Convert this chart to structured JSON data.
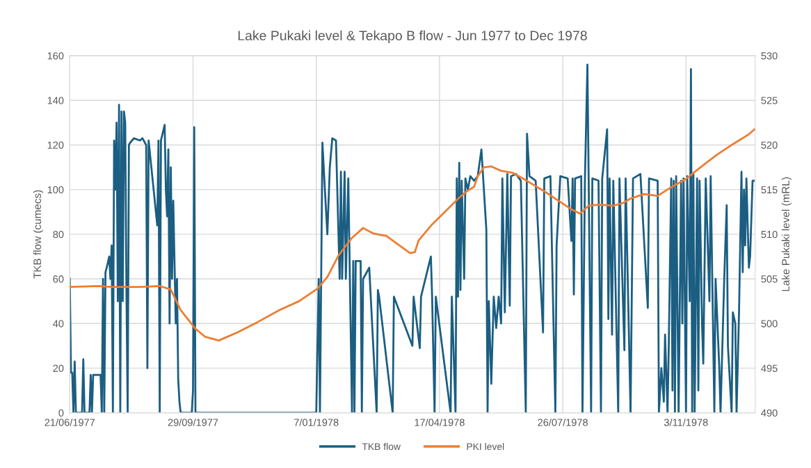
{
  "chart_data": {
    "type": "line",
    "title": "Lake Pukaki level & Tekapo B flow - Jun 1977 to Dec 1978",
    "ylabel": "TKB flow (cumecs)",
    "y2label": "Lake Pukaki level (mRL)",
    "xlim": [
      "1977-06-21",
      "1978-12-29"
    ],
    "xticks": [
      {
        "value": "1977-06-21",
        "label": "21/06/1977"
      },
      {
        "value": "1977-09-29",
        "label": "29/09/1977"
      },
      {
        "value": "1978-01-07",
        "label": "7/01/1978"
      },
      {
        "value": "1978-04-17",
        "label": "17/04/1978"
      },
      {
        "value": "1978-07-26",
        "label": "26/07/1978"
      },
      {
        "value": "1978-11-03",
        "label": "3/11/1978"
      }
    ],
    "ylim": [
      0,
      160
    ],
    "yticks": [
      0,
      20,
      40,
      60,
      80,
      100,
      120,
      140,
      160
    ],
    "y2lim": [
      490,
      530
    ],
    "y2ticks": [
      490,
      495,
      500,
      505,
      510,
      515,
      520,
      525,
      530
    ],
    "grid": true,
    "legend": "bottom",
    "marker": "none",
    "line_style": "solid",
    "series": [
      {
        "name": "TKB flow",
        "color": "#1b5e82",
        "x": [
          "1977-06-21",
          "1977-06-22",
          "1977-06-23",
          "1977-06-24",
          "1977-06-25",
          "1977-06-26",
          "1977-07-01",
          "1977-07-02",
          "1977-07-03",
          "1977-07-07",
          "1977-07-08",
          "1977-07-09",
          "1977-07-10",
          "1977-07-16",
          "1977-07-17",
          "1977-07-18",
          "1977-07-19",
          "1977-07-20",
          "1977-07-21",
          "1977-07-23",
          "1977-07-24",
          "1977-07-25",
          "1977-07-26",
          "1977-07-27",
          "1977-07-28",
          "1977-07-29",
          "1977-07-30",
          "1977-07-31",
          "1977-08-01",
          "1977-08-02",
          "1977-08-03",
          "1977-08-04",
          "1977-08-05",
          "1977-08-06",
          "1977-08-07",
          "1977-08-08",
          "1977-08-09",
          "1977-08-12",
          "1977-08-17",
          "1977-08-19",
          "1977-08-22",
          "1977-08-23",
          "1977-08-24",
          "1977-08-31",
          "1977-09-01",
          "1977-09-02",
          "1977-09-03",
          "1977-09-06",
          "1977-09-07",
          "1977-09-08",
          "1977-09-09",
          "1977-09-10",
          "1977-09-11",
          "1977-09-12",
          "1977-09-13",
          "1977-09-15",
          "1977-09-16",
          "1977-09-17",
          "1977-09-18",
          "1977-09-19",
          "1977-09-28",
          "1977-09-29",
          "1977-09-30",
          "1977-10-01",
          "1978-01-07",
          "1978-01-09",
          "1978-01-10",
          "1978-01-12",
          "1978-01-14",
          "1978-01-16",
          "1978-01-18",
          "1978-01-20",
          "1978-01-23",
          "1978-01-26",
          "1978-01-27",
          "1978-01-28",
          "1978-01-30",
          "1978-01-31",
          "1978-02-02",
          "1978-02-05",
          "1978-02-06",
          "1978-02-07",
          "1978-02-08",
          "1978-02-12",
          "1978-02-13",
          "1978-02-14",
          "1978-02-19",
          "1978-02-25",
          "1978-02-26",
          "1978-02-27",
          "1978-03-10",
          "1978-03-11",
          "1978-03-26",
          "1978-03-27",
          "1978-04-01",
          "1978-04-02",
          "1978-04-10",
          "1978-04-11",
          "1978-04-13",
          "1978-04-14",
          "1978-04-26",
          "1978-04-27",
          "1978-04-30",
          "1978-05-01",
          "1978-05-02",
          "1978-05-03",
          "1978-05-04",
          "1978-05-05",
          "1978-05-07",
          "1978-05-08",
          "1978-05-10",
          "1978-05-12",
          "1978-05-15",
          "1978-05-18",
          "1978-05-21",
          "1978-05-23",
          "1978-05-25",
          "1978-05-26",
          "1978-05-27",
          "1978-05-29",
          "1978-05-31",
          "1978-06-02",
          "1978-06-04",
          "1978-06-06",
          "1978-06-07",
          "1978-06-09",
          "1978-06-11",
          "1978-06-13",
          "1978-06-14",
          "1978-06-18",
          "1978-06-22",
          "1978-06-26",
          "1978-06-27",
          "1978-06-29",
          "1978-07-04",
          "1978-07-10",
          "1978-07-11",
          "1978-07-16",
          "1978-07-20",
          "1978-07-21",
          "1978-07-24",
          "1978-07-30",
          "1978-08-02",
          "1978-08-03",
          "1978-08-04",
          "1978-08-05",
          "1978-08-10",
          "1978-08-11",
          "1978-08-13",
          "1978-08-15",
          "1978-08-16",
          "1978-08-18",
          "1978-08-19",
          "1978-08-24",
          "1978-08-26",
          "1978-08-27",
          "1978-08-31",
          "1978-09-01",
          "1978-09-02",
          "1978-09-04",
          "1978-09-05",
          "1978-09-09",
          "1978-09-10",
          "1978-09-14",
          "1978-09-15",
          "1978-09-19",
          "1978-09-21",
          "1978-09-27",
          "1978-10-03",
          "1978-10-04",
          "1978-10-11",
          "1978-10-12",
          "1978-10-14",
          "1978-10-16",
          "1978-10-17",
          "1978-10-19",
          "1978-10-20",
          "1978-10-22",
          "1978-10-23",
          "1978-10-24",
          "1978-10-25",
          "1978-10-26",
          "1978-10-27",
          "1978-10-28",
          "1978-10-30",
          "1978-10-31",
          "1978-11-01",
          "1978-11-03",
          "1978-11-04",
          "1978-11-06",
          "1978-11-07",
          "1978-11-08",
          "1978-11-09",
          "1978-11-10",
          "1978-11-12",
          "1978-11-13",
          "1978-11-14",
          "1978-11-16",
          "1978-11-17",
          "1978-11-19",
          "1978-11-22",
          "1978-11-23",
          "1978-11-26",
          "1978-11-27",
          "1978-11-30",
          "1978-12-01",
          "1978-12-04",
          "1978-12-06",
          "1978-12-07",
          "1978-12-10",
          "1978-12-11",
          "1978-12-13",
          "1978-12-14",
          "1978-12-16",
          "1978-12-18",
          "1978-12-19",
          "1978-12-20",
          "1978-12-21",
          "1978-12-22",
          "1978-12-24",
          "1978-12-25",
          "1978-12-27",
          "1978-12-29"
        ],
        "values": [
          60,
          18,
          18,
          0,
          23,
          0,
          0,
          24,
          0,
          0,
          17,
          0,
          17,
          17,
          0,
          60,
          0,
          63,
          65,
          70,
          60,
          75,
          0,
          122,
          100,
          130,
          50,
          138,
          0,
          135,
          50,
          135,
          130,
          55,
          0,
          120,
          121,
          123,
          122,
          123,
          120,
          20,
          122,
          84,
          122,
          0,
          122,
          129,
          100,
          88,
          118,
          40,
          110,
          60,
          95,
          40,
          60,
          15,
          5,
          0,
          0,
          10,
          128,
          0,
          0,
          60,
          0,
          121,
          100,
          80,
          110,
          123,
          122,
          60,
          108,
          60,
          108,
          60,
          105,
          0,
          68,
          0,
          68,
          68,
          0,
          60,
          65,
          0,
          55,
          52,
          0,
          52,
          30,
          52,
          29,
          52,
          70,
          52,
          0,
          52,
          0,
          52,
          0,
          105,
          52,
          112,
          55,
          104,
          60,
          105,
          100,
          106,
          104,
          106,
          118,
          100,
          82,
          0,
          50,
          13,
          52,
          38,
          52,
          40,
          105,
          45,
          107,
          48,
          106,
          107,
          104,
          0,
          125,
          106,
          104,
          36,
          105,
          106,
          0,
          75,
          106,
          105,
          77,
          105,
          53,
          105,
          106,
          0,
          105,
          156,
          105,
          0,
          105,
          104,
          0,
          105,
          127,
          42,
          105,
          35,
          104,
          0,
          105,
          28,
          105,
          0,
          105,
          107,
          47,
          105,
          104,
          0,
          20,
          5,
          35,
          0,
          30,
          105,
          10,
          104,
          0,
          106,
          50,
          0,
          104,
          40,
          105,
          0,
          106,
          50,
          154,
          0,
          107,
          0,
          105,
          10,
          104,
          40,
          22,
          105,
          50,
          106,
          0,
          60,
          20,
          0,
          60,
          93,
          30,
          0,
          45,
          40,
          0,
          45,
          108,
          63,
          100,
          75,
          105,
          65,
          70,
          104,
          104
        ]
      },
      {
        "name": "PKI level",
        "color": "#ed7d31",
        "axis": "y2",
        "x": [
          "1977-06-21",
          "1977-07-14",
          "1977-07-25",
          "1977-08-17",
          "1977-09-02",
          "1977-09-11",
          "1977-09-19",
          "1977-10-01",
          "1977-10-09",
          "1977-10-20",
          "1977-11-04",
          "1977-11-21",
          "1977-12-08",
          "1977-12-24",
          "1978-01-08",
          "1978-01-16",
          "1978-01-25",
          "1978-02-05",
          "1978-02-14",
          "1978-02-22",
          "1978-03-05",
          "1978-03-16",
          "1978-03-24",
          "1978-03-28",
          "1978-03-31",
          "1978-04-11",
          "1978-04-22",
          "1978-05-03",
          "1978-05-10",
          "1978-05-15",
          "1978-05-18",
          "1978-05-23",
          "1978-05-29",
          "1978-06-06",
          "1978-06-15",
          "1978-06-23",
          "1978-07-10",
          "1978-07-22",
          "1978-08-02",
          "1978-08-09",
          "1978-08-16",
          "1978-08-24",
          "1978-09-05",
          "1978-09-13",
          "1978-09-19",
          "1978-09-30",
          "1978-10-11",
          "1978-10-20",
          "1978-11-03",
          "1978-11-12",
          "1978-11-28",
          "1978-12-10",
          "1978-12-24",
          "1978-12-29"
        ],
        "values": [
          504.1,
          504.2,
          504.1,
          504.1,
          504.2,
          503.8,
          501.5,
          499.4,
          498.5,
          498.1,
          499.0,
          500.2,
          501.5,
          502.5,
          503.9,
          505.2,
          507.6,
          509.6,
          510.7,
          510.1,
          509.8,
          508.7,
          507.9,
          508.0,
          509.3,
          511.1,
          512.6,
          514.1,
          514.9,
          515.3,
          516.5,
          517.5,
          517.6,
          517.1,
          516.9,
          516.3,
          514.9,
          513.8,
          512.8,
          512.3,
          513.2,
          513.3,
          513.2,
          513.5,
          514.0,
          514.5,
          514.3,
          515.1,
          516.2,
          517.2,
          518.9,
          520.0,
          521.2,
          521.8
        ]
      }
    ]
  }
}
